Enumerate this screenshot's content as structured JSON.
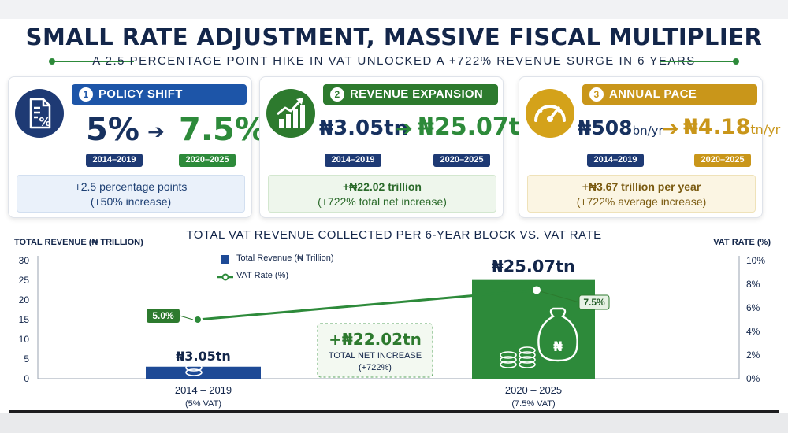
{
  "header": {
    "title": "SMALL RATE ADJUSTMENT, MASSIVE FISCAL MULTIPLIER",
    "subtitle": "A 2.5 PERCENTAGE POINT HIKE IN VAT UNLOCKED A +722% REVENUE SURGE IN 6 YEARS"
  },
  "panels": [
    {
      "number": "1",
      "title": "POLICY SHIFT",
      "icon": "document-percent-icon",
      "from_value": "5%",
      "from_unit": "",
      "to_value": "7.5%",
      "to_unit": "",
      "from_period": "2014–2019",
      "to_period": "2020–2025",
      "note_line1": "+2.5 percentage points",
      "note_line2": "(+50% increase)",
      "color": "#1d55a8"
    },
    {
      "number": "2",
      "title": "REVENUE EXPANSION",
      "icon": "bar-chart-arrow-icon",
      "from_value": "₦3.05tn",
      "from_unit": "",
      "to_value": "₦25.07tn",
      "to_unit": "",
      "from_period": "2014–2019",
      "to_period": "2020–2025",
      "note_line1": "+₦22.02 trillion",
      "note_line2": "(+722% total net increase)",
      "color": "#2d7a2e"
    },
    {
      "number": "3",
      "title": "ANNUAL PACE",
      "icon": "speedometer-icon",
      "from_value": "₦508",
      "from_unit": "bn/yr",
      "to_value": "₦4.18",
      "to_unit": "tn/yr",
      "from_period": "2014–2019",
      "to_period": "2020–2025",
      "note_line1": "+₦3.67 trillion per year",
      "note_line2": "(+722% average increase)",
      "color": "#c9961a"
    }
  ],
  "chart_data": {
    "type": "bar",
    "title": "TOTAL VAT REVENUE COLLECTED PER 6-YEAR BLOCK VS. VAT RATE",
    "categories": [
      "2014 – 2019",
      "2020 – 2025"
    ],
    "category_notes": [
      "(5% VAT)",
      "(7.5% VAT)"
    ],
    "series": [
      {
        "name": "Total Revenue (₦ Trillion)",
        "type": "bar",
        "axis": "left",
        "values": [
          3.05,
          25.07
        ],
        "labels": [
          "₦3.05tn",
          "₦25.07tn"
        ],
        "colors": [
          "#1e4a96",
          "#2d8a3a"
        ]
      },
      {
        "name": "VAT Rate (%)",
        "type": "line",
        "axis": "right",
        "values": [
          5.0,
          7.5
        ],
        "labels": [
          "5.0%",
          "7.5%"
        ],
        "color": "#2d8a3a"
      }
    ],
    "ylabel_left": "TOTAL REVENUE (₦ TRILLION)",
    "ylabel_right": "VAT RATE (%)",
    "ylim_left": [
      0,
      30
    ],
    "yticks_left": [
      0,
      5,
      10,
      15,
      20,
      25,
      30
    ],
    "ylim_right": [
      0,
      10
    ],
    "yticks_right": [
      "0%",
      "2%",
      "4%",
      "6%",
      "8%",
      "10%"
    ],
    "annotation": {
      "value": "+₦22.02tn",
      "line1": "TOTAL NET INCREASE",
      "line2": "(+722%)"
    },
    "grid": false,
    "legend": "top-left"
  }
}
